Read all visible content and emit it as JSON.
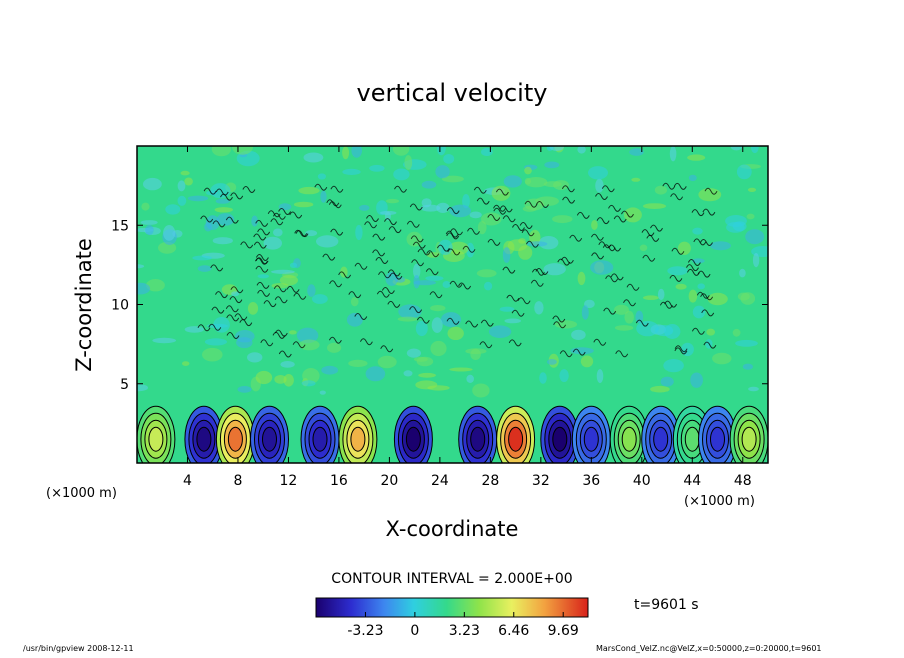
{
  "chart_data": {
    "type": "heatmap",
    "title": "vertical velocity",
    "xlabel": "X-coordinate",
    "ylabel": "Z-coordinate",
    "x_unit": "(×1000 m)",
    "y_unit": "(×1000 m)",
    "xlim": [
      0,
      50
    ],
    "ylim": [
      0,
      20
    ],
    "x_ticks": [
      4,
      8,
      12,
      16,
      20,
      24,
      28,
      32,
      36,
      40,
      44,
      48
    ],
    "y_ticks": [
      5,
      10,
      15
    ],
    "contour_interval_text": "CONTOUR INTERVAL = 2.000E+00",
    "time_text": "t=9601 s",
    "colorbar": {
      "ticks": [
        -3.23,
        0,
        3.23,
        6.46,
        9.69
      ],
      "tick_labels": [
        "-3.23",
        "0",
        "3.23",
        "6.46",
        "9.69"
      ],
      "range": [
        -6.46,
        11.31
      ]
    },
    "cells": [
      {
        "x": 1.5,
        "value": 5.5
      },
      {
        "x": 5.3,
        "value": -6.0
      },
      {
        "x": 7.8,
        "value": 9.5
      },
      {
        "x": 10.5,
        "value": -5.5
      },
      {
        "x": 14.5,
        "value": -5.0
      },
      {
        "x": 17.5,
        "value": 8.0
      },
      {
        "x": 21.9,
        "value": -6.5
      },
      {
        "x": 27.0,
        "value": -6.0
      },
      {
        "x": 30.0,
        "value": 11.0
      },
      {
        "x": 33.5,
        "value": -6.5
      },
      {
        "x": 36.0,
        "value": -4.0
      },
      {
        "x": 39.0,
        "value": 4.0
      },
      {
        "x": 41.5,
        "value": -4.0
      },
      {
        "x": 44.0,
        "value": 3.0
      },
      {
        "x": 46.0,
        "value": -4.0
      },
      {
        "x": 48.5,
        "value": 5.0
      }
    ],
    "grid": false
  },
  "footer": {
    "left": "/usr/bin/gpview   2008-12-11",
    "right": "MarsCond_VelZ.nc@VelZ,x=0:50000,z=0:20000,t=9601"
  },
  "colors": {
    "background_field": "#33d98c",
    "frame": "#000000"
  }
}
